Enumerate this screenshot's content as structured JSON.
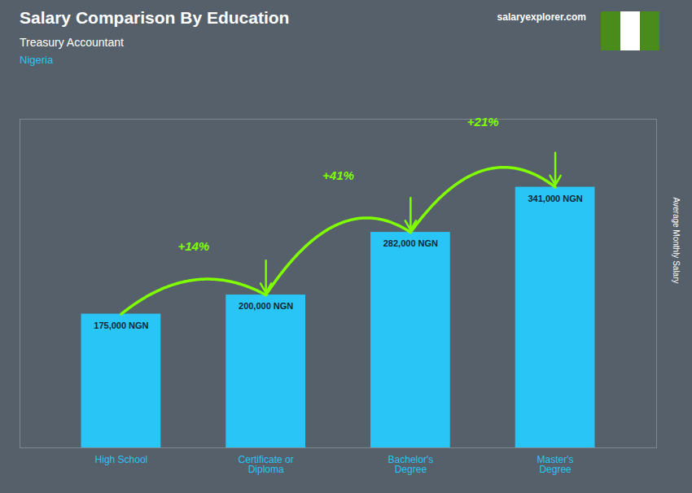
{
  "chart_data": {
    "type": "bar",
    "title": "Salary Comparison By Education",
    "subtitle": "Treasury Accountant",
    "country": "Nigeria",
    "watermark": "salaryexplorer.com",
    "ylabel": "Average Monthly Salary",
    "categories": [
      "High School",
      "Certificate or\nDiploma",
      "Bachelor's\nDegree",
      "Master's\nDegree"
    ],
    "values": [
      175000,
      200000,
      282000,
      341000
    ],
    "value_labels": [
      "175,000 NGN",
      "200,000 NGN",
      "282,000 NGN",
      "341,000 NGN"
    ],
    "data_labels": true,
    "color": "#29c5f6",
    "annotations": [
      {
        "from": 0,
        "to": 1,
        "text": "+14%",
        "color": "#7fff00"
      },
      {
        "from": 1,
        "to": 2,
        "text": "+41%",
        "color": "#7fff00"
      },
      {
        "from": 2,
        "to": 3,
        "text": "+21%",
        "color": "#7fff00"
      }
    ],
    "ylim": [
      0,
      430000
    ],
    "tick_labels": "x",
    "grid": false
  }
}
